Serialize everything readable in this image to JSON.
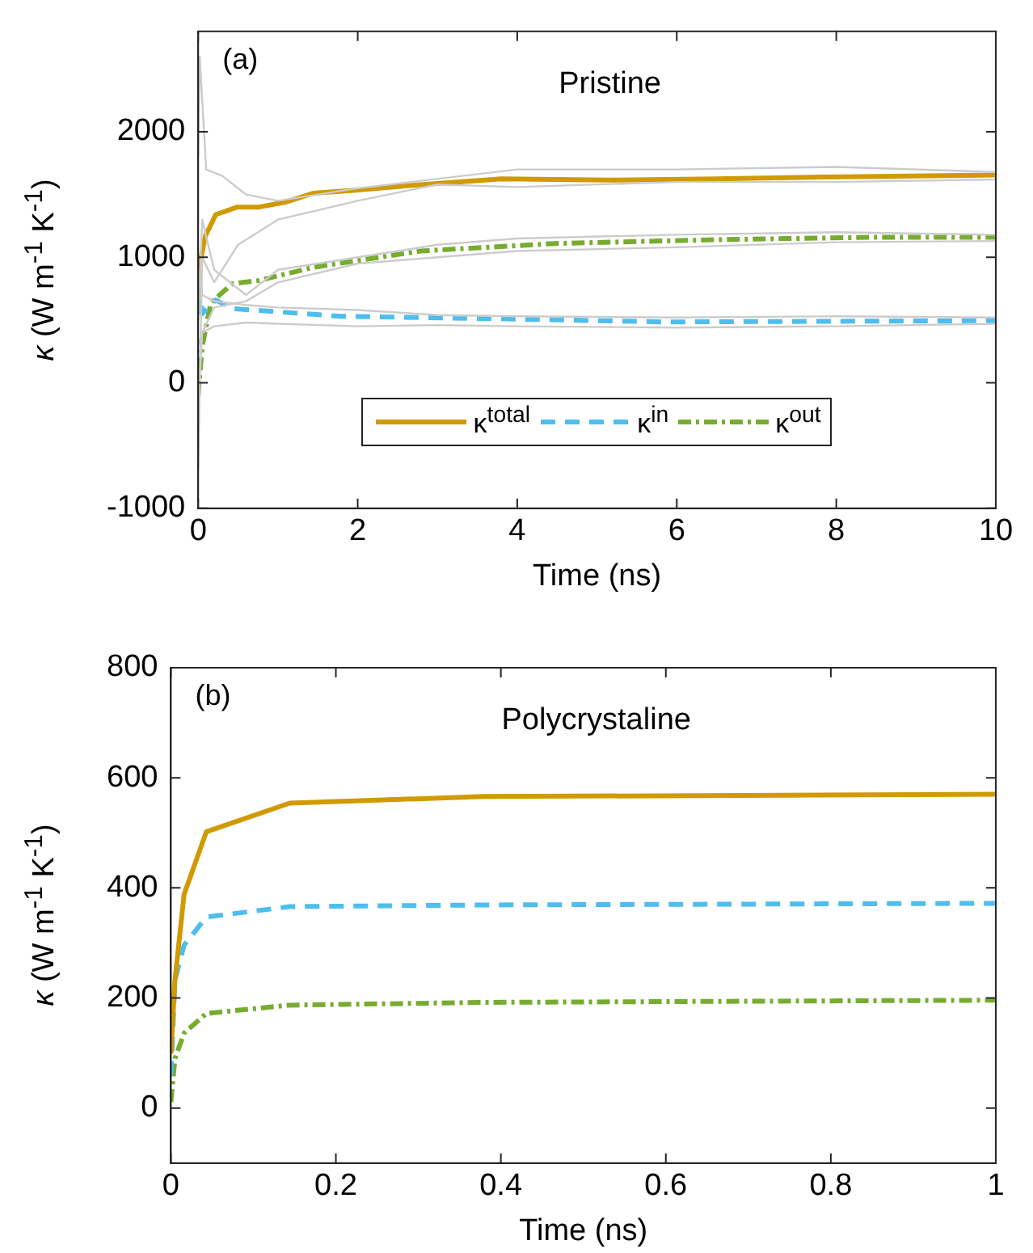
{
  "chart_data": [
    {
      "type": "line",
      "title": "Pristine",
      "xlabel": "Time (ns)",
      "ylabel": "κ (W m$^{-1}$ K$^{-1}$)",
      "annotations": [
        "(a)"
      ],
      "xlim": [
        0,
        10
      ],
      "xticks": [
        0,
        2,
        4,
        6,
        8,
        10
      ],
      "ylim": [
        -1000,
        2800
      ],
      "yticks": [
        -1000,
        0,
        1000,
        2000
      ],
      "grid": false,
      "legend": "bottom",
      "series": [
        {
          "color": "#cccccc",
          "x": [
            0,
            0.02,
            0.1,
            0.3,
            0.6,
            1,
            2,
            4,
            6,
            8,
            10
          ],
          "values": [
            1800,
            2600,
            1700,
            1650,
            1500,
            1450,
            1550,
            1700,
            1700,
            1720,
            1680
          ]
        },
        {
          "color": "#cccccc",
          "x": [
            0,
            0.05,
            0.2,
            0.5,
            1,
            2,
            3,
            4,
            6,
            8,
            10
          ],
          "values": [
            -700,
            1000,
            800,
            1100,
            1300,
            1450,
            1580,
            1560,
            1600,
            1600,
            1620
          ]
        },
        {
          "color": "#cccccc",
          "x": [
            0,
            0.05,
            0.2,
            0.6,
            1,
            2,
            3,
            4,
            6,
            8,
            10
          ],
          "values": [
            500,
            1300,
            900,
            700,
            900,
            1000,
            1100,
            1150,
            1180,
            1200,
            1180
          ]
        },
        {
          "color": "#cccccc",
          "x": [
            0,
            0.05,
            0.2,
            0.6,
            1,
            2,
            3,
            4,
            6,
            8,
            10
          ],
          "values": [
            -200,
            400,
            600,
            650,
            800,
            950,
            1000,
            1050,
            1080,
            1120,
            1130
          ]
        },
        {
          "color": "#cccccc",
          "x": [
            0,
            0.05,
            0.2,
            0.6,
            1,
            2,
            3,
            4,
            6,
            8,
            10
          ],
          "values": [
            900,
            700,
            650,
            620,
            600,
            580,
            540,
            530,
            520,
            530,
            520
          ]
        },
        {
          "color": "#cccccc",
          "x": [
            0,
            0.05,
            0.2,
            0.6,
            1,
            2,
            3,
            4,
            6,
            8,
            10
          ],
          "values": [
            300,
            400,
            450,
            480,
            470,
            450,
            460,
            450,
            440,
            450,
            470
          ]
        },
        {
          "name": "κ$^{total}$",
          "color": "#d09a00",
          "line_style": "solid",
          "x": [
            0,
            0.02,
            0.09,
            0.22,
            0.49,
            0.76,
            1.1,
            1.44,
            1.98,
            2.72,
            3.8,
            5.16,
            6.5,
            7.86,
            10
          ],
          "values": [
            680,
            945,
            1170,
            1340,
            1400,
            1400,
            1440,
            1510,
            1535,
            1575,
            1625,
            1615,
            1625,
            1640,
            1655
          ]
        },
        {
          "name": "κ$^{in}$",
          "color": "#4dbeee",
          "line_style": "dashed",
          "x": [
            0,
            0.02,
            0.05,
            0.22,
            0.43,
            0.76,
            1.78,
            3.8,
            5.83,
            10
          ],
          "values": [
            550,
            775,
            550,
            660,
            590,
            577,
            530,
            510,
            485,
            495
          ]
        },
        {
          "name": "κ$^{out}$",
          "color": "#77ac30",
          "line_style": "dotted",
          "x": [
            0,
            0.05,
            0.16,
            0.43,
            0.76,
            1.44,
            2.79,
            4.48,
            6.5,
            8.53,
            10
          ],
          "values": [
            -105,
            290,
            640,
            790,
            815,
            920,
            1050,
            1110,
            1140,
            1160,
            1160
          ]
        }
      ]
    },
    {
      "type": "line",
      "title": "Polycrystaline",
      "xlabel": "Time (ns)",
      "ylabel": "κ (W m$^{-1}$ K$^{-1}$)",
      "annotations": [
        "(b)"
      ],
      "xlim": [
        0,
        1
      ],
      "xticks": [
        0,
        0.2,
        0.4,
        0.6,
        0.8,
        1
      ],
      "ylim": [
        -100,
        800
      ],
      "yticks": [
        0,
        200,
        400,
        600,
        800
      ],
      "grid": false,
      "series": [
        {
          "color": "#d09a00",
          "line_style": "solid",
          "x": [
            0,
            0.005,
            0.016,
            0.043,
            0.144,
            0.38,
            1
          ],
          "values": [
            99,
            233,
            388,
            502,
            554,
            566,
            570
          ]
        },
        {
          "color": "#4dbeee",
          "line_style": "dashed",
          "x": [
            0,
            0.005,
            0.016,
            0.043,
            0.144,
            0.38,
            1
          ],
          "values": [
            59,
            233,
            296,
            347,
            366,
            369,
            372
          ]
        },
        {
          "color": "#77ac30",
          "line_style": "dotted",
          "x": [
            0,
            0.005,
            0.016,
            0.043,
            0.144,
            0.38,
            1
          ],
          "values": [
            11,
            90,
            136,
            172,
            187,
            192,
            196
          ]
        }
      ]
    }
  ]
}
